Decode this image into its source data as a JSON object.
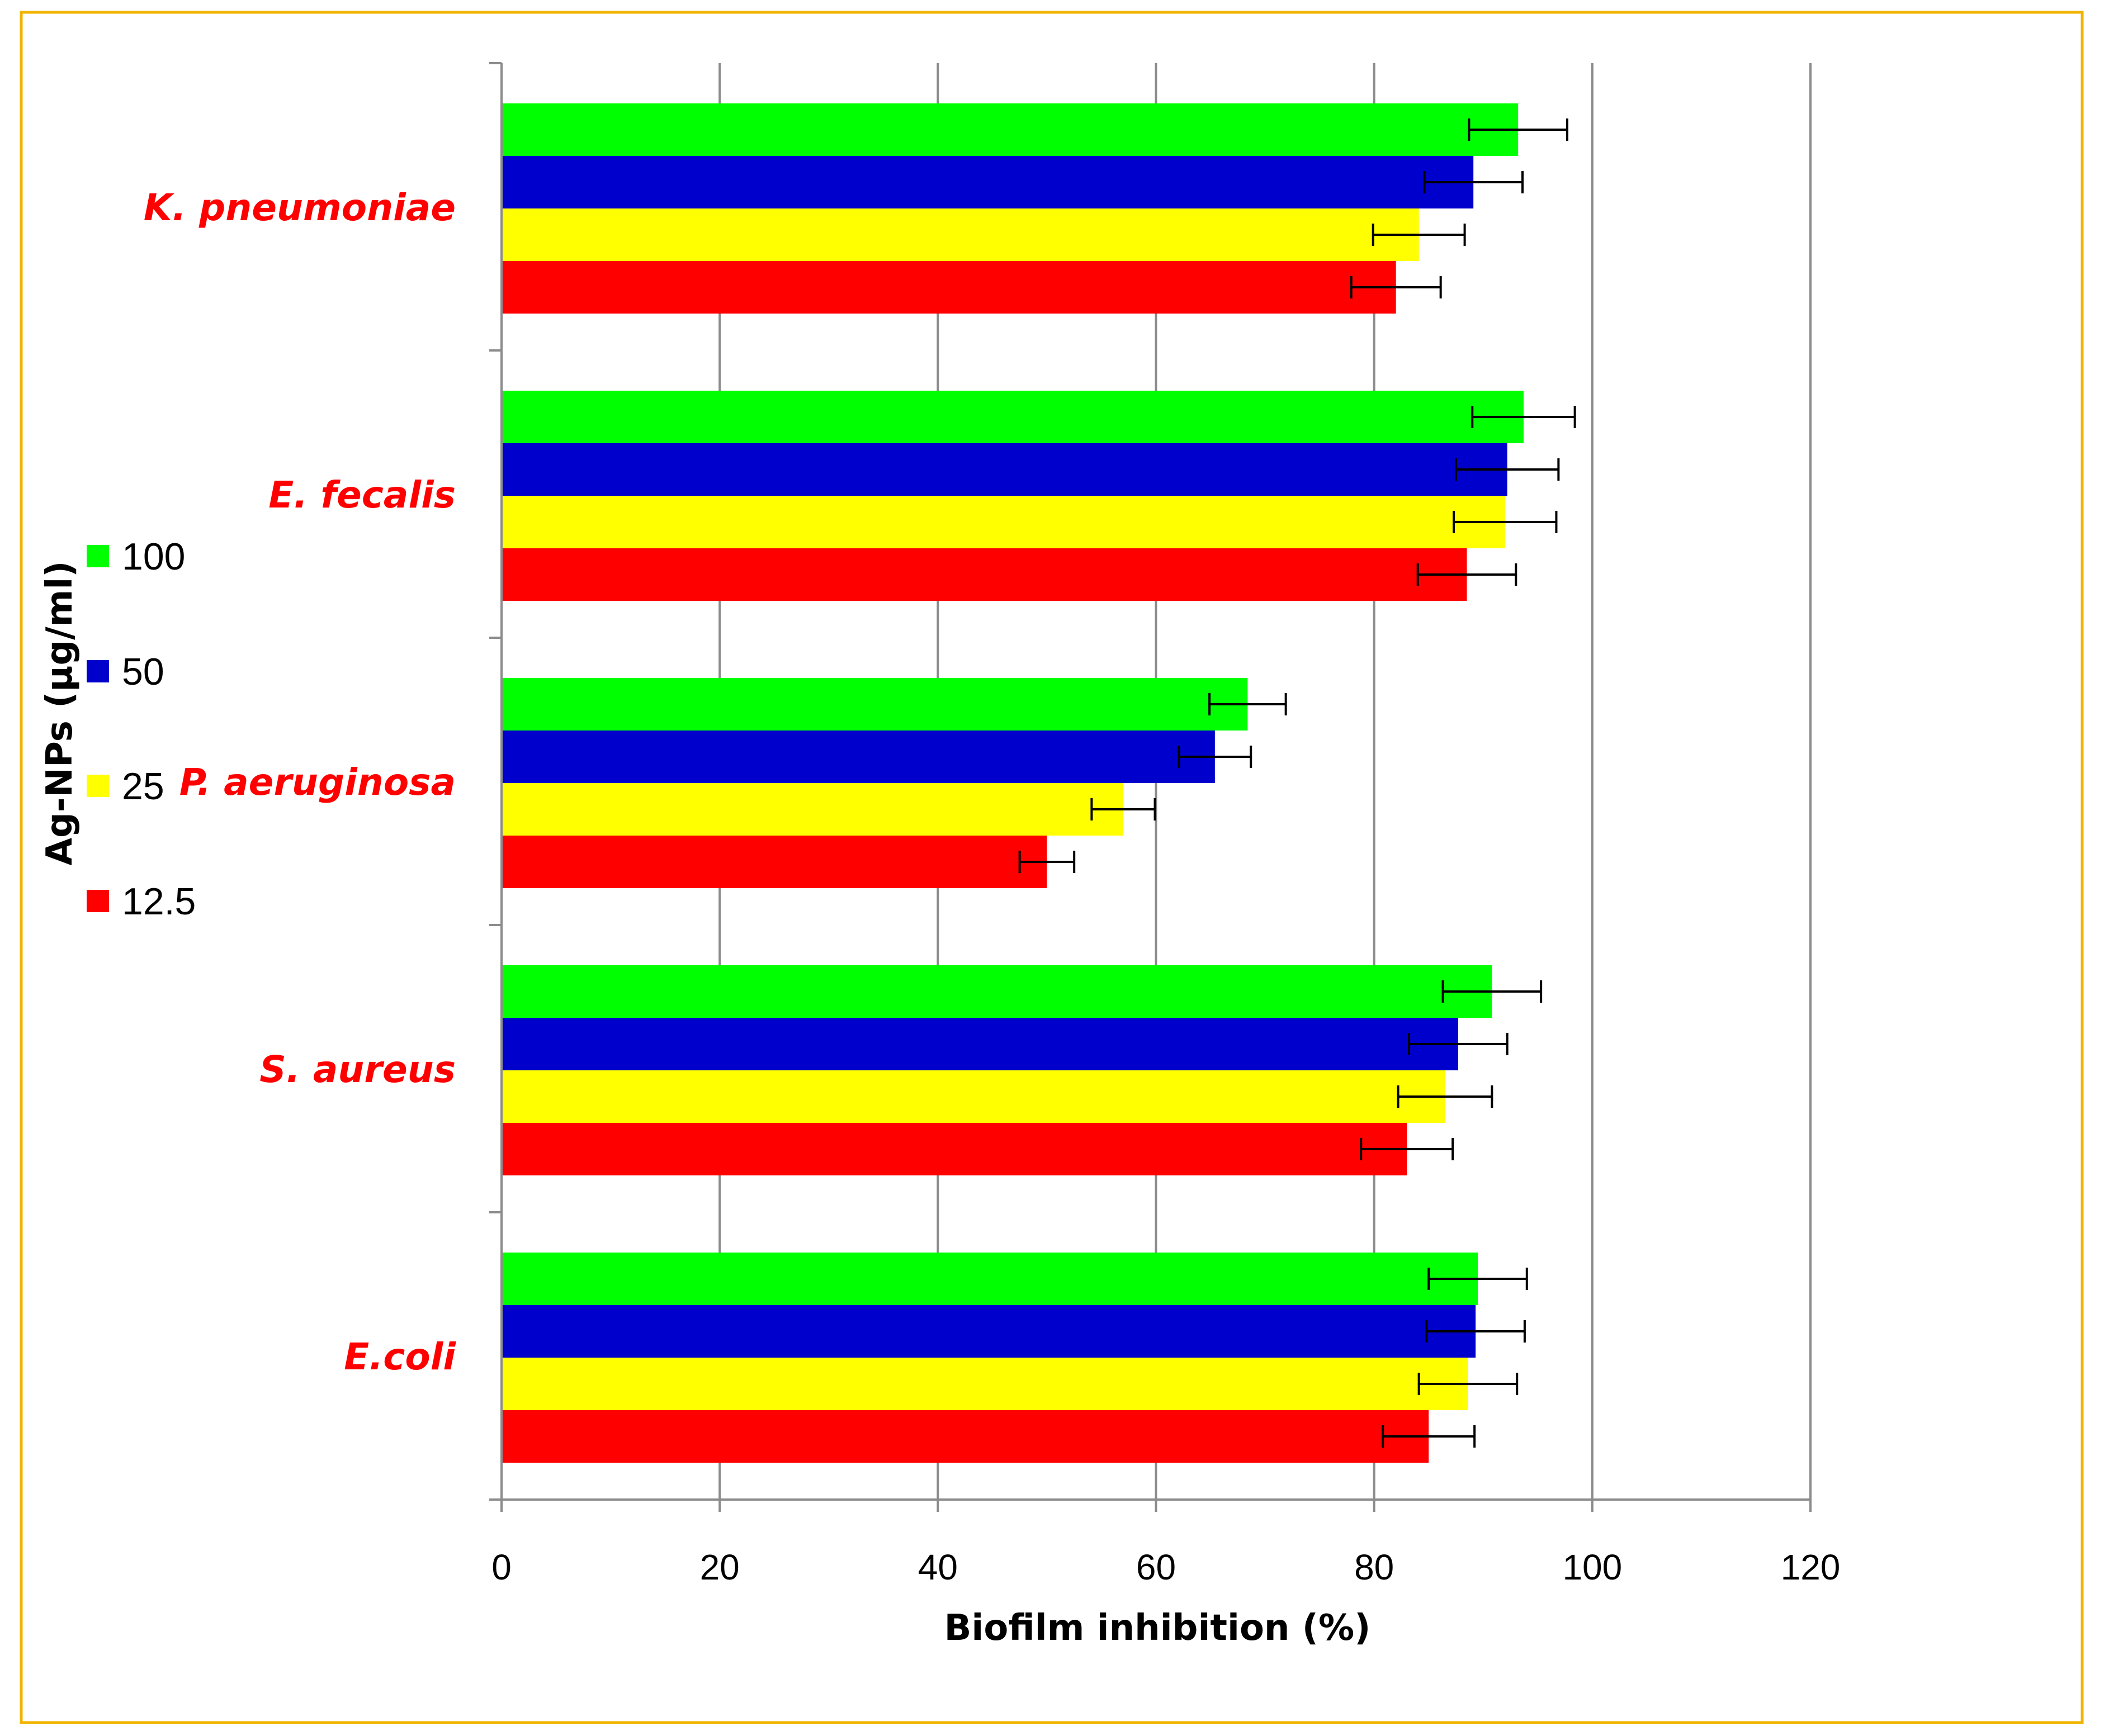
{
  "chart_data": {
    "type": "bar",
    "orientation": "horizontal",
    "xlabel": "Biofilm inhibition (%)",
    "ylabel": "Ag-NPs (µg/ml)",
    "xlim": [
      0,
      120
    ],
    "xticks": [
      "0",
      "20",
      "40",
      "60",
      "80",
      "100",
      "120"
    ],
    "grid": "vertical",
    "legend_position": "left",
    "categories": [
      "K. pneumoniae",
      "E. fecalis",
      "P. aeruginosa",
      "S. aureus",
      "E.coli"
    ],
    "series": [
      {
        "name": "100",
        "color": "#00ff00",
        "values": [
          93.2,
          93.7,
          68.4,
          90.8,
          89.5
        ],
        "errors": [
          4.5,
          4.7,
          3.5,
          4.5,
          4.5
        ]
      },
      {
        "name": "50",
        "color": "#0000cc",
        "values": [
          89.1,
          92.2,
          65.4,
          87.7,
          89.3
        ],
        "errors": [
          4.5,
          4.7,
          3.3,
          4.5,
          4.5
        ]
      },
      {
        "name": "25",
        "color": "#ffff00",
        "values": [
          84.1,
          92.0,
          57.0,
          86.5,
          88.6
        ],
        "errors": [
          4.2,
          4.7,
          2.9,
          4.3,
          4.5
        ]
      },
      {
        "name": "12.5",
        "color": "#ff0000",
        "values": [
          82.0,
          88.5,
          50.0,
          83.0,
          85.0
        ],
        "errors": [
          4.1,
          4.5,
          2.5,
          4.2,
          4.2
        ]
      }
    ]
  },
  "colors": {
    "frame": "#f0b400",
    "category_label": "#ff0000",
    "grid": "#8c8c8c"
  }
}
